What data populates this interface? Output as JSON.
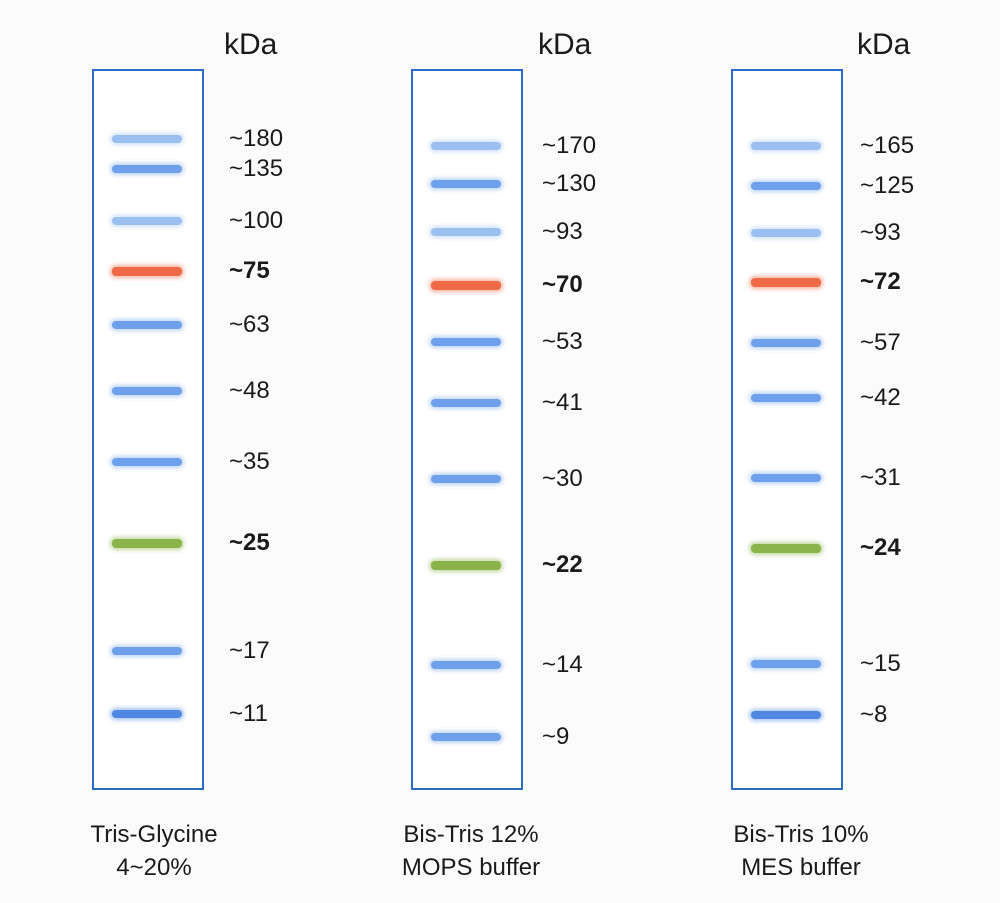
{
  "panels": [
    {
      "unit": "kDa",
      "caption_line1": "Tris-Glycine",
      "caption_line2": "4~20%",
      "markers": [
        {
          "label": "~180",
          "color": "blue",
          "bold": false
        },
        {
          "label": "~135",
          "color": "blue",
          "bold": false
        },
        {
          "label": "~100",
          "color": "blue",
          "bold": false
        },
        {
          "label": "~75",
          "color": "red",
          "bold": true
        },
        {
          "label": "~63",
          "color": "blue",
          "bold": false
        },
        {
          "label": "~48",
          "color": "blue",
          "bold": false
        },
        {
          "label": "~35",
          "color": "blue",
          "bold": false
        },
        {
          "label": "~25",
          "color": "green",
          "bold": true
        },
        {
          "label": "~17",
          "color": "blue",
          "bold": false
        },
        {
          "label": "~11",
          "color": "blue",
          "bold": false
        }
      ]
    },
    {
      "unit": "kDa",
      "caption_line1": "Bis-Tris 12%",
      "caption_line2": "MOPS buffer",
      "markers": [
        {
          "label": "~170",
          "color": "blue",
          "bold": false
        },
        {
          "label": "~130",
          "color": "blue",
          "bold": false
        },
        {
          "label": "~93",
          "color": "blue",
          "bold": false
        },
        {
          "label": "~70",
          "color": "red",
          "bold": true
        },
        {
          "label": "~53",
          "color": "blue",
          "bold": false
        },
        {
          "label": "~41",
          "color": "blue",
          "bold": false
        },
        {
          "label": "~30",
          "color": "blue",
          "bold": false
        },
        {
          "label": "~22",
          "color": "green",
          "bold": true
        },
        {
          "label": "~14",
          "color": "blue",
          "bold": false
        },
        {
          "label": "~9",
          "color": "blue",
          "bold": false
        }
      ]
    },
    {
      "unit": "kDa",
      "caption_line1": "Bis-Tris 10%",
      "caption_line2": "MES buffer",
      "markers": [
        {
          "label": "~165",
          "color": "blue",
          "bold": false
        },
        {
          "label": "~125",
          "color": "blue",
          "bold": false
        },
        {
          "label": "~93",
          "color": "blue",
          "bold": false
        },
        {
          "label": "~72",
          "color": "red",
          "bold": true
        },
        {
          "label": "~57",
          "color": "blue",
          "bold": false
        },
        {
          "label": "~42",
          "color": "blue",
          "bold": false
        },
        {
          "label": "~31",
          "color": "blue",
          "bold": false
        },
        {
          "label": "~24",
          "color": "green",
          "bold": true
        },
        {
          "label": "~15",
          "color": "blue",
          "bold": false
        },
        {
          "label": "~8",
          "color": "blue",
          "bold": false
        }
      ]
    }
  ]
}
